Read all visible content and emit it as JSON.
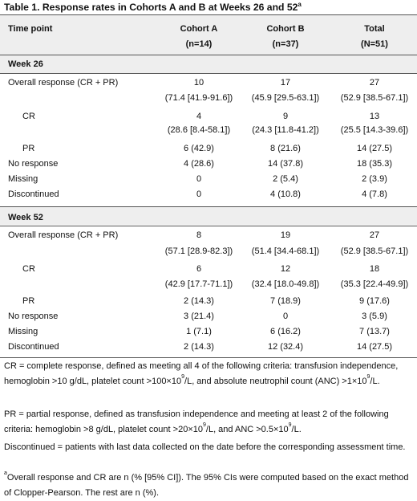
{
  "title": "Table 1. Response rates in Cohorts A and B at Weeks 26 and 52",
  "title_sup": "a",
  "header": {
    "timepoint": "Time point",
    "cohort_a": "Cohort A",
    "cohort_a_n": "(n=14)",
    "cohort_b": "Cohort B",
    "cohort_b_n": "(n=37)",
    "total": "Total",
    "total_n": "(N=51)"
  },
  "week26": {
    "label": "Week 26",
    "overall_label": "Overall response (CR + PR)",
    "overall": [
      "10",
      "17",
      "27"
    ],
    "overall_ci": [
      "(71.4 [41.9-91.6])",
      "(45.9 [29.5-63.1])",
      "(52.9 [38.5-67.1])"
    ],
    "cr_label": "CR",
    "cr": [
      "4",
      "9",
      "13"
    ],
    "cr_ci": [
      "(28.6 [8.4-58.1])",
      "(24.3 [11.8-41.2])",
      "(25.5 [14.3-39.6])"
    ],
    "pr_label": "PR",
    "pr": [
      "6 (42.9)",
      "8 (21.6)",
      "14 (27.5)"
    ],
    "noresp_label": "No response",
    "noresp": [
      "4 (28.6)",
      "14 (37.8)",
      "18 (35.3)"
    ],
    "missing_label": "Missing",
    "missing": [
      "0",
      "2 (5.4)",
      "2 (3.9)"
    ],
    "disc_label": "Discontinued",
    "disc": [
      "0",
      "4 (10.8)",
      "4 (7.8)"
    ]
  },
  "week52": {
    "label": "Week 52",
    "overall_label": "Overall response (CR + PR)",
    "overall": [
      "8",
      "19",
      "27"
    ],
    "overall_ci": [
      "(57.1 [28.9-82.3])",
      "(51.4 [34.4-68.1])",
      "(52.9 [38.5-67.1])"
    ],
    "cr_label": "CR",
    "cr": [
      "6",
      "12",
      "18"
    ],
    "cr_ci": [
      "(42.9 [17.7-71.1])",
      "(32.4 [18.0-49.8])",
      "(35.3 [22.4-49.9])"
    ],
    "pr_label": "PR",
    "pr": [
      "2 (14.3)",
      "7 (18.9)",
      "9 (17.6)"
    ],
    "noresp_label": "No response",
    "noresp": [
      "3 (21.4)",
      "0",
      "3 (5.9)"
    ],
    "missing_label": "Missing",
    "missing": [
      "1 (7.1)",
      "6 (16.2)",
      "7 (13.7)"
    ],
    "disc_label": "Discontinued",
    "disc": [
      "2 (14.3)",
      "12 (32.4)",
      "14 (27.5)"
    ]
  },
  "footnotes": {
    "cr_def_1": "CR = complete response, defined as meeting all 4 of the following criteria: transfusion independence, hemoglobin >10 g/dL, platelet count >100×10",
    "cr_def_sup1": "9",
    "cr_def_2": "/L, and absolute neutrophil count (ANC) >1×10",
    "cr_def_sup2": "9",
    "cr_def_3": "/L.",
    "pr_def_1": "PR = partial response, defined as transfusion independence and meeting at least 2 of the following criteria: hemoglobin >8 g/dL, platelet count >20×10",
    "pr_def_sup1": "9",
    "pr_def_2": "/L, and ANC >0.5×10",
    "pr_def_sup2": "9",
    "pr_def_3": "/L.",
    "disc_def": "Discontinued = patients with last data collected on the date before the corresponding assessment time.",
    "a_sup": "a",
    "a_def": "Overall response and CR are n (% [95% CI]). The 95% CIs were computed based on the exact method of Clopper-Pearson. The rest are n (%)."
  }
}
